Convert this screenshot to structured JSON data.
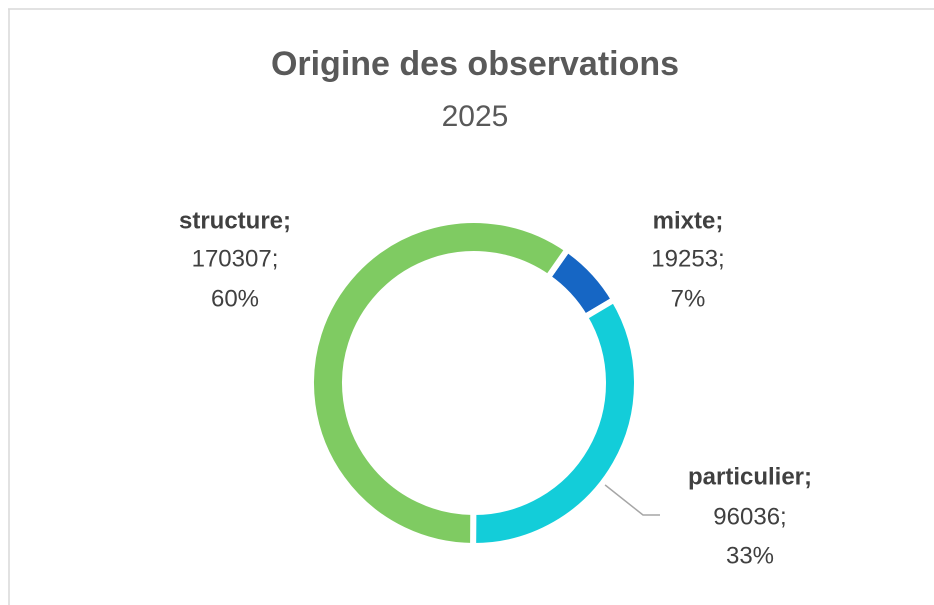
{
  "chart_data": {
    "type": "donut",
    "title": "Origine des observations",
    "subtitle": "2025",
    "categories": [
      "mixte;",
      "particulier;",
      "structure;"
    ],
    "values": [
      19253,
      96036,
      170307
    ],
    "value_labels": [
      "19253;",
      "96036;",
      "170307;"
    ],
    "percents": [
      7,
      33,
      60
    ],
    "percent_labels": [
      "7%",
      "33%",
      "60%"
    ],
    "colors": [
      "#1666c4",
      "#13cdd9",
      "#7fcb62"
    ],
    "start_angle": 35
  }
}
